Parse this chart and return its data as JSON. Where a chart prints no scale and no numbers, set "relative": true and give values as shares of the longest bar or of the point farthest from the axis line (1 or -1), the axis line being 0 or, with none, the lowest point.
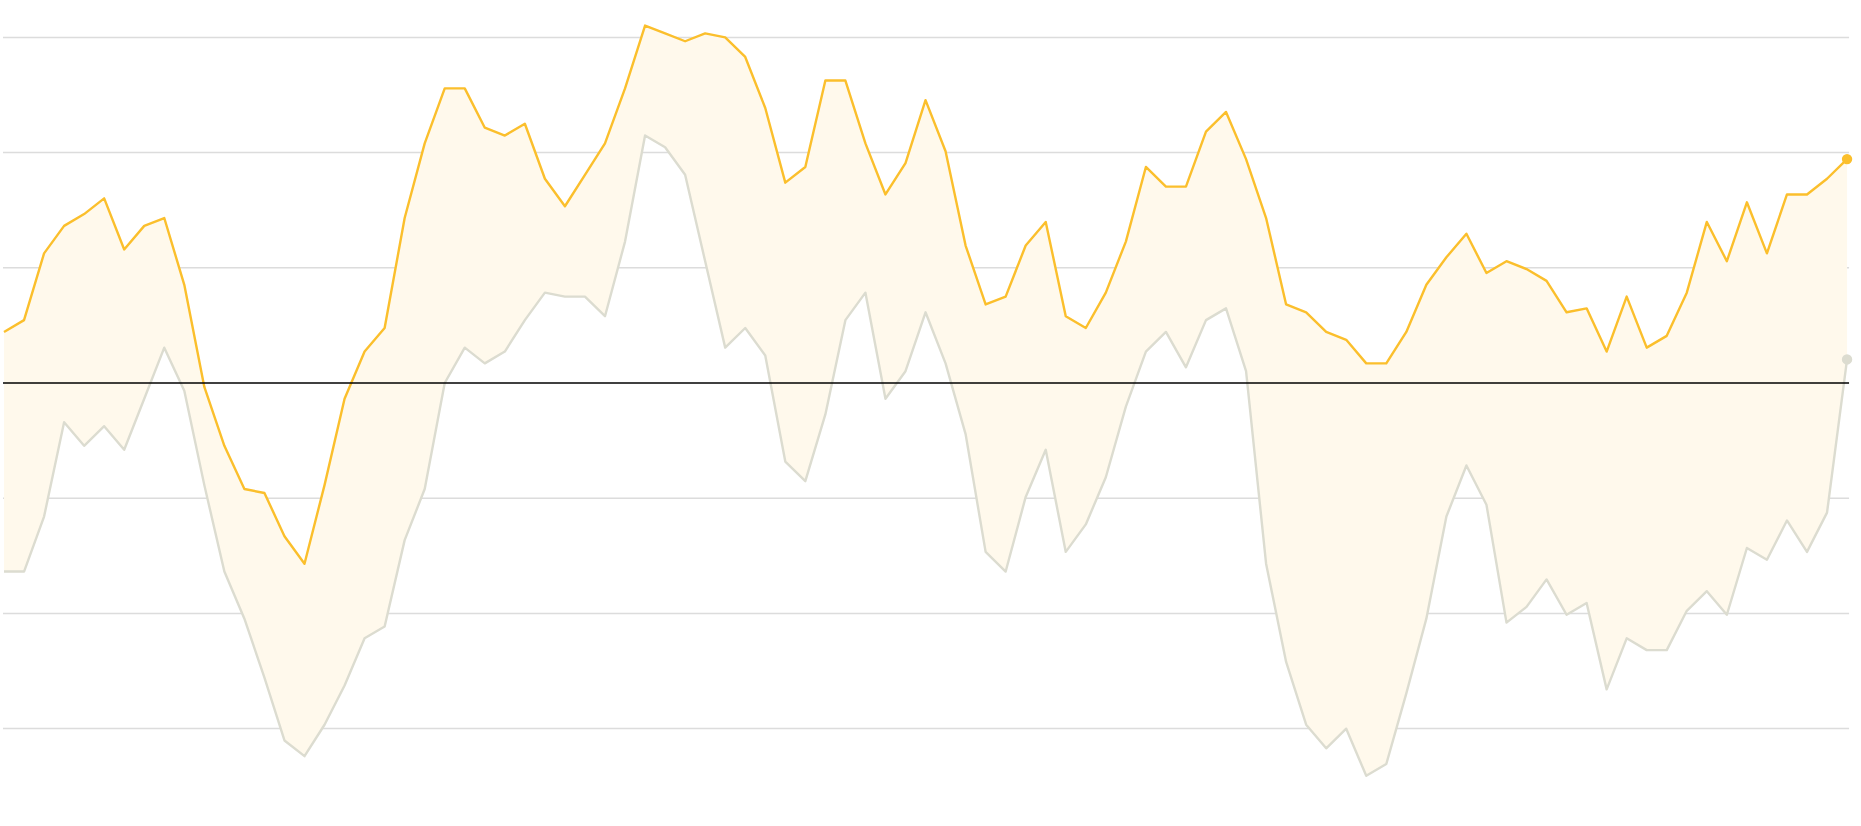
{
  "chart_data": {
    "type": "line",
    "relative": true,
    "grid": "y",
    "categories": [
      null,
      null,
      null,
      null,
      null,
      null,
      null,
      null,
      null,
      null,
      null,
      null,
      null,
      null,
      null,
      null,
      null,
      null,
      null,
      null,
      null,
      null,
      null,
      null,
      null,
      null,
      null,
      null,
      null,
      null,
      null,
      null,
      null,
      null,
      null,
      null,
      null,
      null,
      null,
      null,
      null,
      null,
      null,
      null,
      null,
      null,
      null,
      null,
      null,
      null,
      null,
      null,
      null,
      null,
      null,
      null,
      null,
      null,
      null,
      null,
      null,
      null,
      null,
      null,
      null,
      null,
      null,
      null,
      null,
      null,
      null,
      null,
      null,
      null,
      null,
      null,
      null,
      null,
      null,
      null,
      null,
      null,
      null,
      null,
      null,
      null,
      null,
      null,
      null,
      null,
      null,
      null,
      null
    ],
    "series": [
      {
        "color": "#fbbf2c",
        "values": [
          0.13,
          0.16,
          0.33,
          0.4,
          0.43,
          0.47,
          0.34,
          0.4,
          0.42,
          0.25,
          -0.01,
          -0.16,
          -0.27,
          -0.28,
          -0.39,
          -0.46,
          -0.26,
          -0.04,
          0.08,
          0.14,
          0.42,
          0.61,
          0.75,
          0.75,
          0.65,
          0.63,
          0.66,
          0.52,
          0.45,
          0.53,
          0.61,
          0.75,
          0.91,
          0.89,
          0.87,
          0.89,
          0.88,
          0.83,
          0.7,
          0.51,
          0.55,
          0.77,
          0.77,
          0.61,
          0.48,
          0.56,
          0.72,
          0.59,
          0.35,
          0.2,
          0.22,
          0.35,
          0.41,
          0.17,
          0.14,
          0.23,
          0.36,
          0.55,
          0.5,
          0.5,
          0.64,
          0.69,
          0.57,
          0.42,
          0.2,
          0.18,
          0.13,
          0.11,
          0.05,
          0.05,
          0.13,
          0.25,
          0.32,
          0.38,
          0.28,
          0.31,
          0.29,
          0.26,
          0.18,
          0.19,
          0.08,
          0.22,
          0.09,
          0.12,
          0.23,
          0.41,
          0.31,
          0.46,
          0.33,
          0.48,
          0.48,
          0.52,
          0.57
        ],
        "upper": [
          0.13,
          0.16,
          0.33,
          0.4,
          0.43,
          0.47,
          0.34,
          0.4,
          0.42,
          0.25,
          -0.01,
          -0.16,
          -0.27,
          -0.28,
          -0.39,
          -0.46,
          -0.26,
          -0.04,
          0.08,
          0.14,
          0.42,
          0.61,
          0.75,
          0.75,
          0.65,
          0.63,
          0.66,
          0.52,
          0.45,
          0.53,
          0.61,
          0.75,
          0.91,
          0.89,
          0.87,
          0.89,
          0.88,
          0.83,
          0.7,
          0.51,
          0.55,
          0.77,
          0.77,
          0.61,
          0.48,
          0.56,
          0.72,
          0.59,
          0.35,
          0.2,
          0.22,
          0.35,
          0.41,
          0.17,
          0.14,
          0.23,
          0.36,
          0.55,
          0.5,
          0.5,
          0.64,
          0.69,
          0.57,
          0.42,
          0.2,
          0.18,
          0.13,
          0.11,
          0.05,
          0.05,
          0.13,
          0.25,
          0.32,
          0.38,
          0.28,
          0.31,
          0.29,
          0.26,
          0.18,
          0.19,
          0.08,
          0.22,
          0.09,
          0.12,
          0.23,
          0.41,
          0.31,
          0.46,
          0.33,
          0.48,
          0.48,
          0.52,
          0.57
        ],
        "lower": [
          -0.48,
          -0.48,
          -0.34,
          -0.1,
          -0.16,
          -0.11,
          -0.17,
          -0.04,
          0.09,
          -0.02,
          -0.26,
          -0.48,
          -0.6,
          -0.75,
          -0.91,
          -0.95,
          -0.87,
          -0.77,
          -0.65,
          -0.62,
          -0.4,
          -0.27,
          0.0,
          0.09,
          0.05,
          0.08,
          0.16,
          0.23,
          0.22,
          0.22,
          0.17,
          0.36,
          0.63,
          0.6,
          0.53,
          0.31,
          0.09,
          0.14,
          0.07,
          -0.2,
          -0.25,
          -0.08,
          0.16,
          0.23,
          -0.04,
          0.03,
          0.18,
          0.05,
          -0.13,
          -0.43,
          -0.48,
          -0.29,
          -0.17,
          -0.43,
          -0.36,
          -0.24,
          -0.06,
          0.08,
          0.13,
          0.04,
          0.16,
          0.19,
          0.03,
          -0.46,
          -0.71,
          -0.87,
          -0.93,
          -0.88,
          -1.0,
          -0.97,
          -0.79,
          -0.6,
          -0.34,
          -0.21,
          -0.31,
          -0.61,
          -0.57,
          -0.5,
          -0.59,
          -0.56,
          -0.78,
          -0.65,
          -0.68,
          -0.68,
          -0.58,
          -0.53,
          -0.59,
          -0.42,
          -0.45,
          -0.35,
          -0.43,
          -0.33,
          0.06
        ]
      },
      {
        "color": "#dcdcd0",
        "values": [
          -0.48,
          -0.48,
          -0.34,
          -0.1,
          -0.16,
          -0.11,
          -0.17,
          -0.04,
          0.09,
          -0.02,
          -0.26,
          -0.48,
          -0.6,
          -0.75,
          -0.91,
          -0.95,
          -0.87,
          -0.77,
          -0.65,
          -0.62,
          -0.4,
          -0.27,
          0.0,
          0.09,
          0.05,
          0.08,
          0.16,
          0.23,
          0.22,
          0.22,
          0.17,
          0.36,
          0.63,
          0.6,
          0.53,
          0.31,
          0.09,
          0.14,
          0.07,
          -0.2,
          -0.25,
          -0.08,
          0.16,
          0.23,
          -0.04,
          0.03,
          0.18,
          0.05,
          -0.13,
          -0.43,
          -0.48,
          -0.29,
          -0.17,
          -0.43,
          -0.36,
          -0.24,
          -0.06,
          0.08,
          0.13,
          0.04,
          0.16,
          0.19,
          0.03,
          -0.46,
          -0.71,
          -0.87,
          -0.93,
          -0.88,
          -1.0,
          -0.97,
          -0.79,
          -0.6,
          -0.34,
          -0.21,
          -0.31,
          -0.61,
          -0.57,
          -0.5,
          -0.59,
          -0.56,
          -0.78,
          -0.65,
          -0.68,
          -0.68,
          -0.58,
          -0.53,
          -0.59,
          -0.42,
          -0.45,
          -0.35,
          -0.43,
          -0.33,
          0.06
        ]
      }
    ]
  }
}
